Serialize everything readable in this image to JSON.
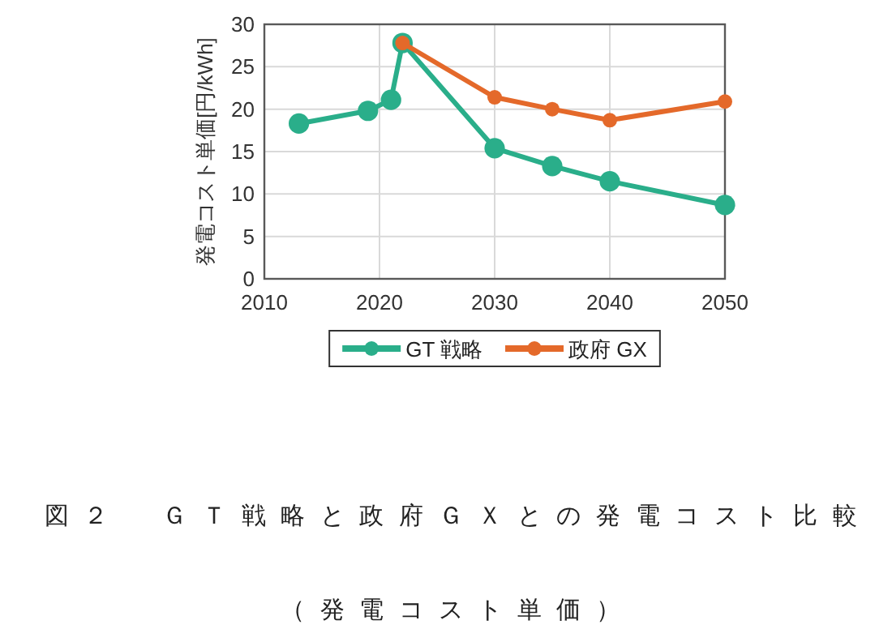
{
  "chart_data": {
    "type": "line",
    "ylabel": "発電コスト単価[円/kWh]",
    "series": [
      {
        "name": "GT 戦略",
        "color": "#2aae8a",
        "x": [
          2013,
          2019,
          2021,
          2022,
          2030,
          2035,
          2040,
          2050
        ],
        "values": [
          18.3,
          19.8,
          21.1,
          27.8,
          15.4,
          13.3,
          11.5,
          8.7
        ]
      },
      {
        "name": "政府 GX",
        "color": "#e4692a",
        "x": [
          2022,
          2030,
          2035,
          2040,
          2050
        ],
        "values": [
          27.8,
          21.4,
          20.0,
          18.7,
          20.9
        ]
      }
    ],
    "xlim": [
      2010,
      2050
    ],
    "ylim": [
      0,
      30
    ],
    "xticks": [
      2010,
      2020,
      2030,
      2040,
      2050
    ],
    "yticks": [
      0,
      5,
      10,
      15,
      20,
      25,
      30
    ],
    "grid": true,
    "legend": "bottom",
    "marker": "circle",
    "line_style": "solid",
    "annotations": [
      "図２　ＧＴ戦略と政府ＧＸとの発電コスト比較（発電コスト単価）"
    ]
  }
}
